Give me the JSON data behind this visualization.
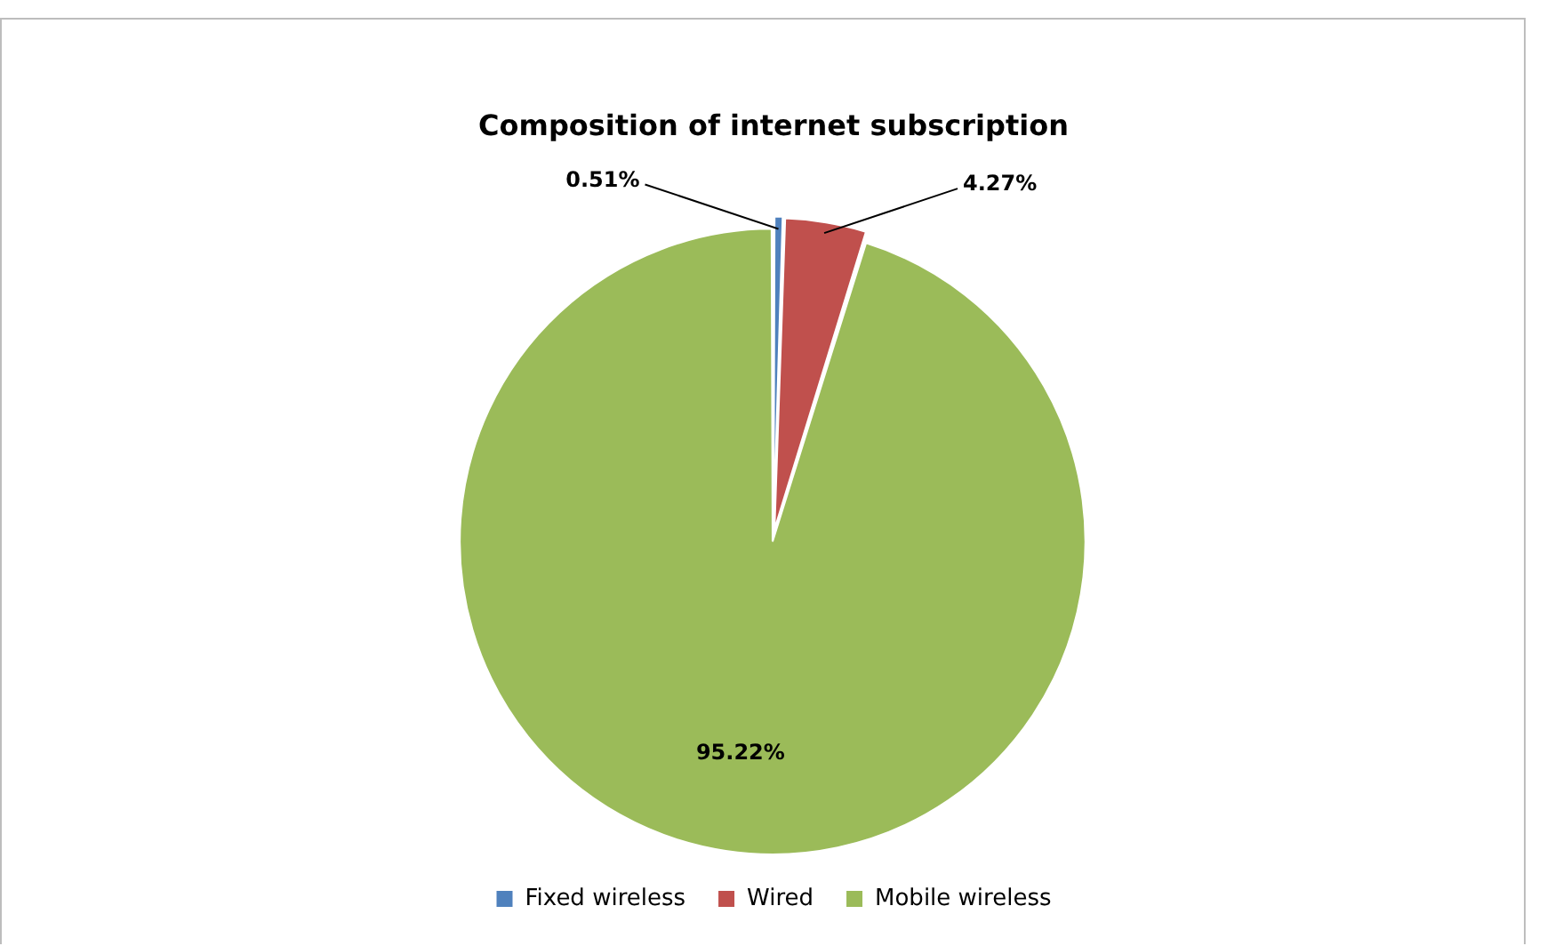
{
  "chart_data": {
    "type": "pie",
    "title": "Composition of internet subscription",
    "categories": [
      "Fixed wireless",
      "Wired",
      "Mobile wireless"
    ],
    "values": [
      0.51,
      4.27,
      95.22
    ],
    "colors": [
      "#4f81bd",
      "#c0504d",
      "#9bbb59"
    ],
    "value_labels": [
      "0.51%",
      "4.27%",
      "95.22%"
    ],
    "legend": "bottom"
  }
}
